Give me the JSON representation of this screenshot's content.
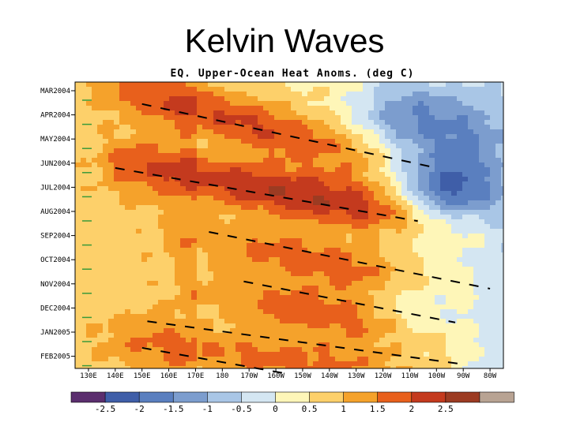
{
  "slide": {
    "title": "Kelvin Waves"
  },
  "chart_data": {
    "type": "heatmap",
    "title": "EQ. Upper-Ocean Heat Anoms. (deg C)",
    "y_ticks": [
      "MAR2004",
      "APR2004",
      "MAY2004",
      "JUN2004",
      "JUL2004",
      "AUG2004",
      "SEP2004",
      "OCT2004",
      "NOV2004",
      "DEC2004",
      "JAN2005",
      "FEB2005"
    ],
    "x_ticks": [
      "130E",
      "140E",
      "150E",
      "160E",
      "170E",
      "180",
      "170W",
      "160W",
      "150W",
      "140W",
      "130W",
      "120W",
      "110W",
      "100W",
      "90W",
      "80W"
    ],
    "colorbar": {
      "levels": [
        "-2.5",
        "-2",
        "-1.5",
        "-1",
        "-0.5",
        "0",
        "0.5",
        "1",
        "1.5",
        "2",
        "2.5"
      ],
      "colors": [
        "#5b2e6e",
        "#3f5ea8",
        "#5a7fbf",
        "#7c9dce",
        "#a9c6e6",
        "#d4e6f2",
        "#fef6b8",
        "#fdd06a",
        "#f5a22b",
        "#e8601c",
        "#c43a1e",
        "#9c3b22",
        "#b8a393"
      ]
    },
    "kelvin_waves": [
      {
        "name": "wave-1",
        "start": {
          "lon": 150,
          "month": 0.55
        },
        "end": {
          "lon": 258,
          "month": 3.15
        }
      },
      {
        "name": "wave-2",
        "start": {
          "lon": 140,
          "month": 3.2
        },
        "end": {
          "lon": 253,
          "month": 5.4
        }
      },
      {
        "name": "wave-3",
        "start": {
          "lon": 175,
          "month": 5.85
        },
        "end": {
          "lon": 280,
          "month": 8.2
        }
      },
      {
        "name": "wave-4",
        "start": {
          "lon": 188,
          "month": 7.9
        },
        "end": {
          "lon": 267,
          "month": 9.6
        }
      },
      {
        "name": "wave-5",
        "start": {
          "lon": 152,
          "month": 9.55
        },
        "end": {
          "lon": 268,
          "month": 11.3
        }
      },
      {
        "name": "wave-6",
        "start": {
          "lon": 150,
          "month": 10.65
        },
        "end": {
          "lon": 203,
          "month": 11.7
        }
      }
    ],
    "warm_bands": [
      {
        "start": {
          "lon": 146,
          "month": -0.1
        },
        "end": {
          "lon": 230,
          "month": 2.7
        },
        "peak": 1.6
      },
      {
        "start": {
          "lon": 148,
          "month": 3.1
        },
        "end": {
          "lon": 268,
          "month": 5.5
        },
        "peak": 2.0
      },
      {
        "start": {
          "lon": 170,
          "month": 6.0
        },
        "end": {
          "lon": 265,
          "month": 8.2
        },
        "peak": 1.3
      },
      {
        "start": {
          "lon": 175,
          "month": 8.3
        },
        "end": {
          "lon": 262,
          "month": 10.2
        },
        "peak": 1.3
      },
      {
        "start": {
          "lon": 148,
          "month": 10.4
        },
        "end": {
          "lon": 258,
          "month": 12.0
        },
        "peak": 1.2
      }
    ],
    "cool_patches": [
      {
        "lon": 247,
        "month": 0.9,
        "amp": 0.9
      },
      {
        "lon": 265,
        "month": 4.3,
        "amp": 1.4
      },
      {
        "lon": 270,
        "month": 1.8,
        "amp": 0.7
      },
      {
        "lon": 253,
        "month": 8.9,
        "amp": 0.5
      }
    ]
  }
}
